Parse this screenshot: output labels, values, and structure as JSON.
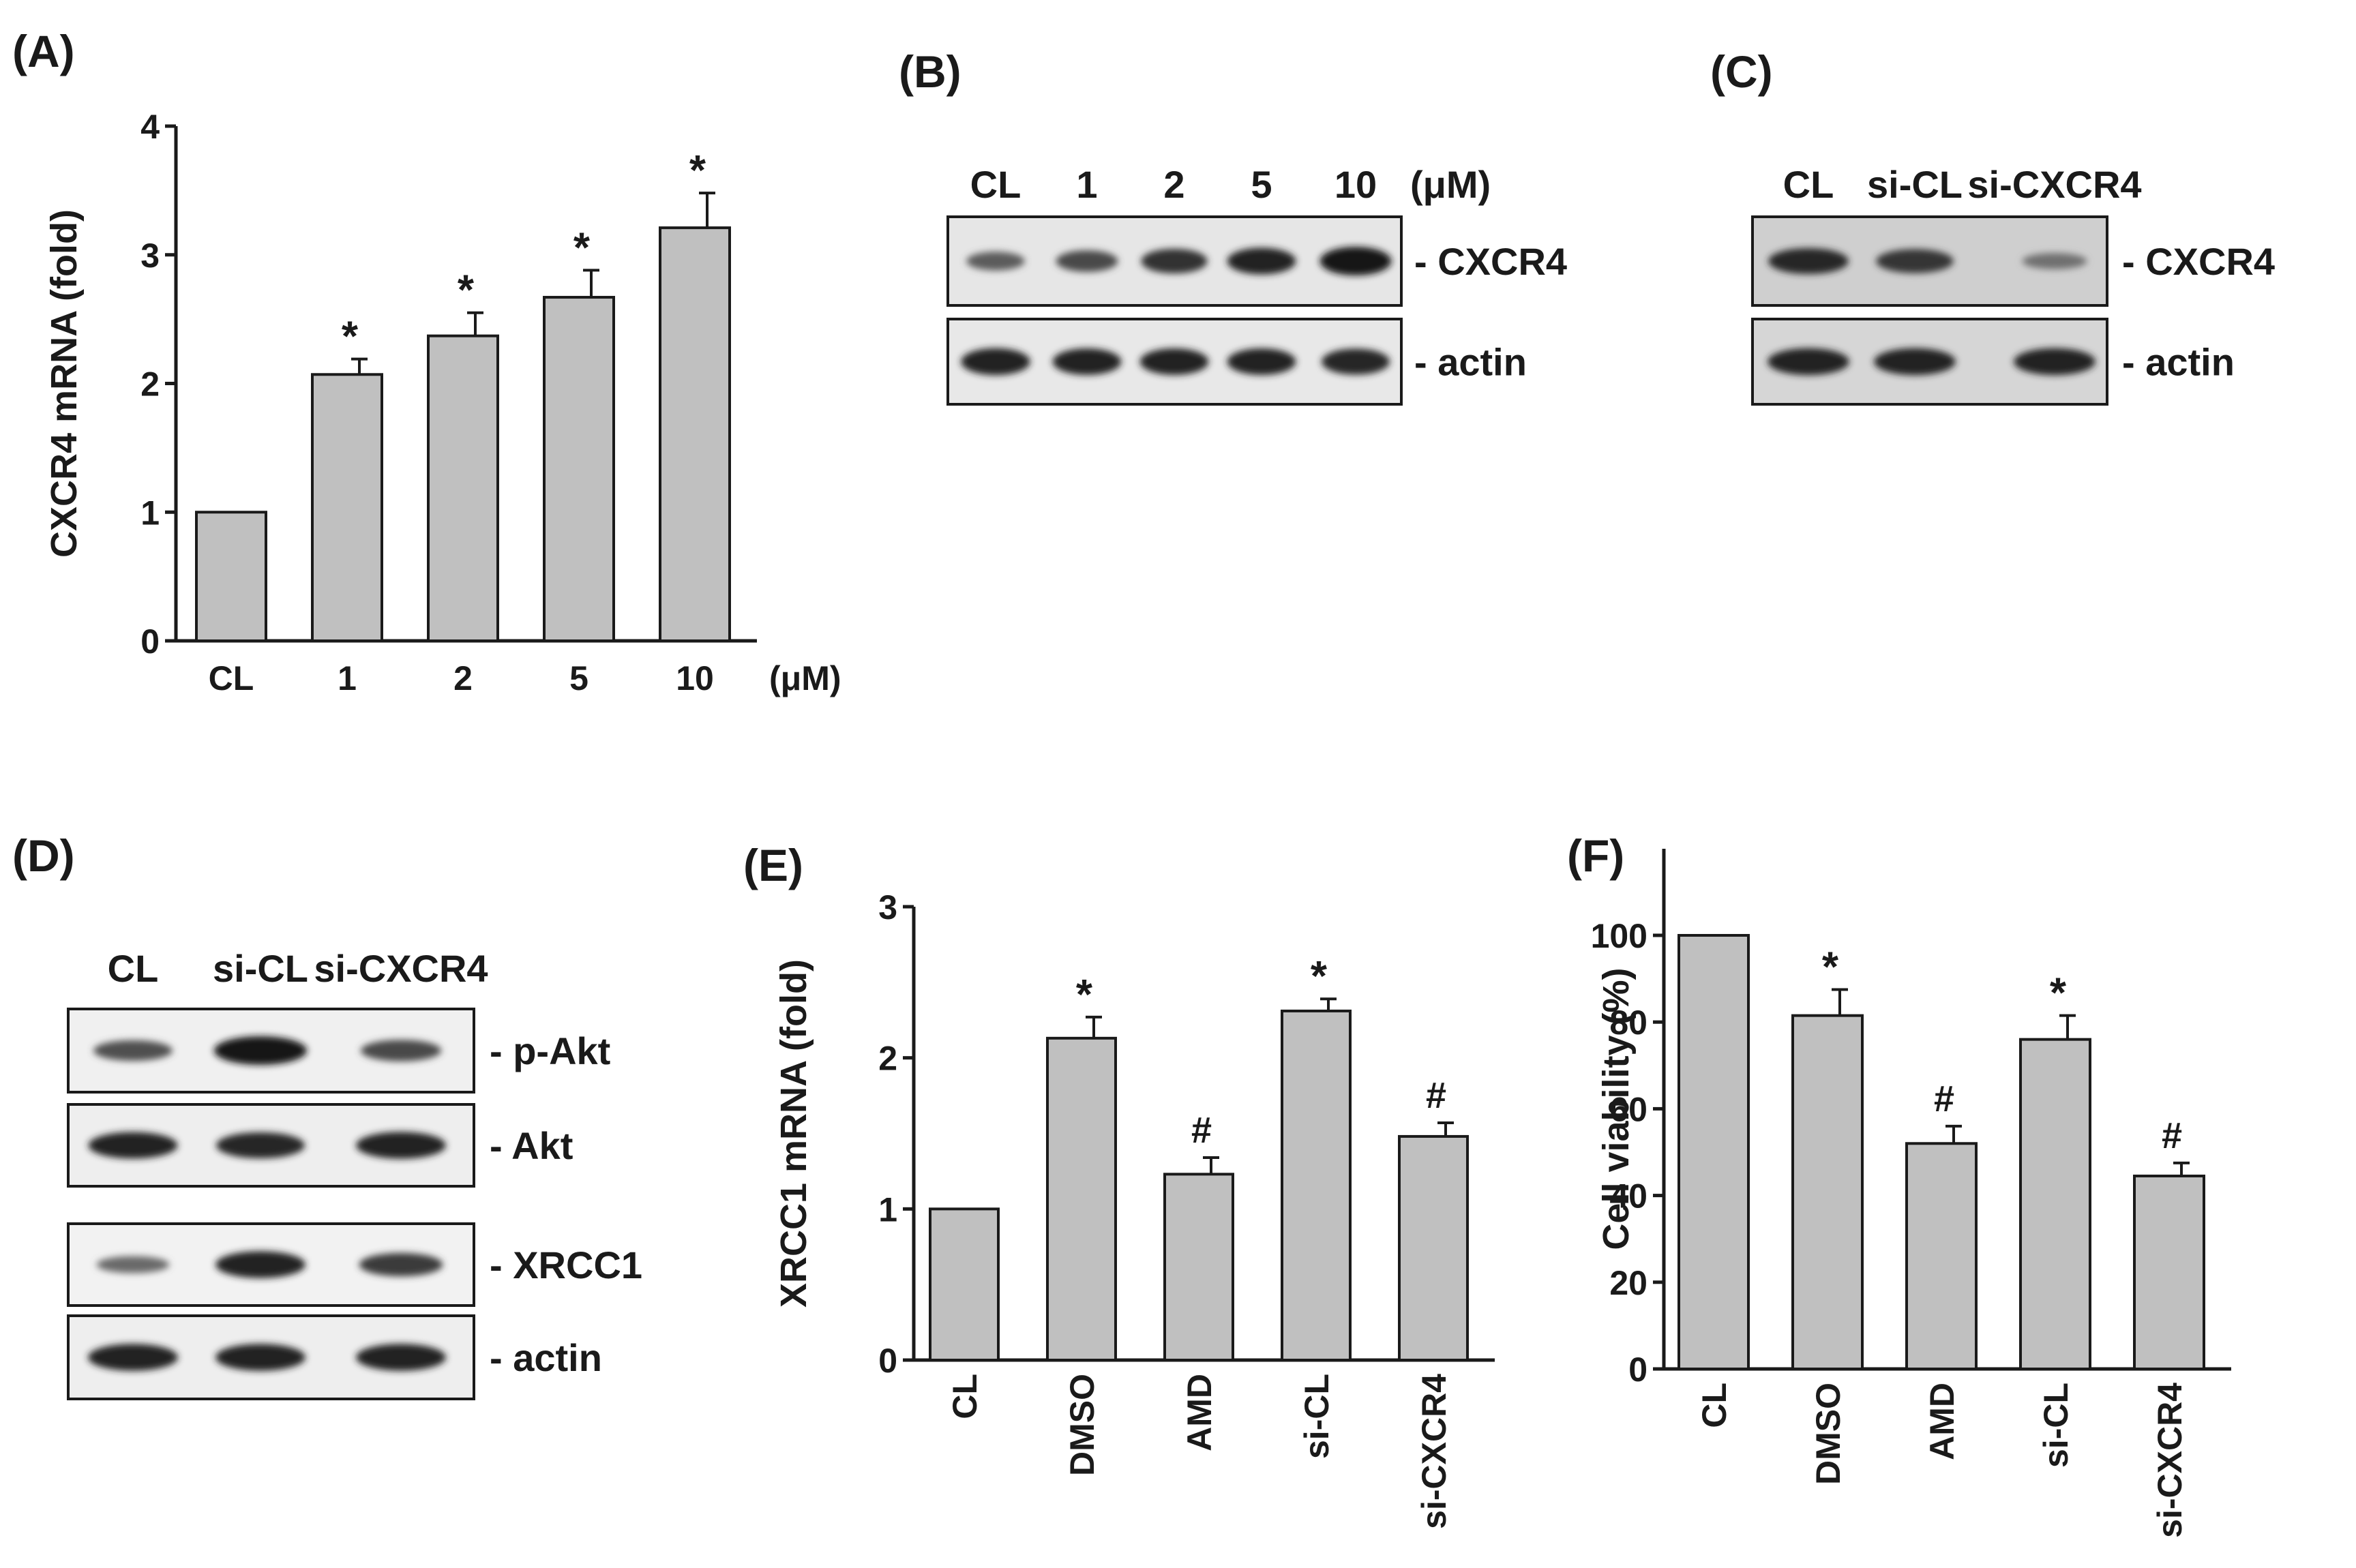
{
  "panels": {
    "A": "(A)",
    "B": "(B)",
    "C": "(C)",
    "D": "(D)",
    "E": "(E)",
    "F": "(F)"
  },
  "chart_data": [
    {
      "id": "A",
      "type": "bar",
      "ylabel": "CXCR4 mRNA (fold)",
      "unit_label": "(μM)",
      "categories": [
        "CL",
        "1",
        "2",
        "5",
        "10"
      ],
      "values": [
        1.0,
        2.07,
        2.37,
        2.67,
        3.21
      ],
      "errors": [
        0,
        0.12,
        0.18,
        0.21,
        0.27
      ],
      "annotations": [
        "",
        "*",
        "*",
        "*",
        "*"
      ],
      "ylim": [
        0,
        4
      ],
      "yticks": [
        0,
        1,
        2,
        3,
        4
      ]
    },
    {
      "id": "E",
      "type": "bar",
      "ylabel": "XRCC1 mRNA (fold)",
      "categories": [
        "CL",
        "DMSO",
        "AMD",
        "si-CL",
        "si-CXCR4"
      ],
      "values": [
        1.0,
        2.13,
        1.23,
        2.31,
        1.48
      ],
      "errors": [
        0,
        0.14,
        0.11,
        0.08,
        0.09
      ],
      "annotations": [
        "",
        "*",
        "#",
        "*",
        "#"
      ],
      "ylim": [
        0,
        3
      ],
      "yticks": [
        0,
        1,
        2,
        3
      ]
    },
    {
      "id": "F",
      "type": "bar",
      "ylabel": "Cell viability (%)",
      "categories": [
        "CL",
        "DMSO",
        "AMD",
        "si-CL",
        "si-CXCR4"
      ],
      "values": [
        100,
        81.5,
        52,
        76,
        44.5
      ],
      "errors": [
        0,
        6,
        4,
        5.5,
        3
      ],
      "annotations": [
        "",
        "*",
        "#",
        "*",
        "#"
      ],
      "ylim": [
        0,
        120
      ],
      "yticks": [
        0,
        20,
        40,
        60,
        80,
        100
      ]
    }
  ],
  "blots": {
    "B": {
      "lanes": [
        "CL",
        "1",
        "2",
        "5",
        "10"
      ],
      "unit_label": "(μM)",
      "rows": [
        {
          "label": "- CXCR4",
          "intensity": [
            0.45,
            0.6,
            0.78,
            0.88,
            1.0
          ]
        },
        {
          "label": "- actin",
          "intensity": [
            0.9,
            0.88,
            0.88,
            0.88,
            0.86
          ]
        }
      ]
    },
    "C": {
      "lanes": [
        "CL",
        "si-CL",
        "si-CXCR4"
      ],
      "rows": [
        {
          "label": "- CXCR4",
          "intensity": [
            0.85,
            0.75,
            0.3
          ]
        },
        {
          "label": "- actin",
          "intensity": [
            0.9,
            0.9,
            0.9
          ]
        }
      ]
    },
    "D": {
      "lanes": [
        "CL",
        "si-CL",
        "si-CXCR4"
      ],
      "rows": [
        {
          "label": "- p-Akt",
          "intensity": [
            0.55,
            1.0,
            0.6
          ]
        },
        {
          "label": "- Akt",
          "intensity": [
            0.88,
            0.86,
            0.9
          ]
        },
        {
          "label": "- XRCC1",
          "intensity": [
            0.35,
            0.9,
            0.7
          ]
        },
        {
          "label": "- actin",
          "intensity": [
            0.9,
            0.9,
            0.9
          ]
        }
      ]
    }
  }
}
